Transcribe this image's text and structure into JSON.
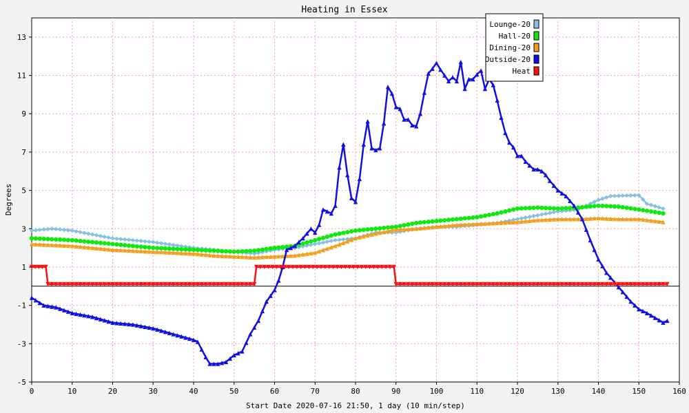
{
  "chart_data": {
    "type": "line",
    "title": "Heating in Essex",
    "xlabel": "Start Date 2020-07-16 21:50, 1 day (10 min/step)",
    "ylabel": "Degrees",
    "xlim": [
      0,
      160
    ],
    "ylim": [
      -5,
      14
    ],
    "x_ticks": [
      0,
      10,
      20,
      30,
      40,
      50,
      60,
      70,
      80,
      90,
      100,
      110,
      120,
      130,
      140,
      150,
      160
    ],
    "y_ticks": [
      -5,
      -3,
      -1,
      1,
      3,
      5,
      7,
      9,
      11,
      13
    ],
    "grid": true,
    "legend_position": "top-right",
    "series": [
      {
        "name": "Lounge-20",
        "color": "#87c0e0",
        "marker": "diamond",
        "points": [
          [
            0,
            2.9
          ],
          [
            5,
            3.0
          ],
          [
            10,
            2.9
          ],
          [
            15,
            2.7
          ],
          [
            20,
            2.5
          ],
          [
            30,
            2.3
          ],
          [
            40,
            2.0
          ],
          [
            45,
            1.9
          ],
          [
            50,
            1.8
          ],
          [
            55,
            1.7
          ],
          [
            60,
            1.9
          ],
          [
            65,
            2.0
          ],
          [
            70,
            2.2
          ],
          [
            75,
            2.4
          ],
          [
            80,
            2.5
          ],
          [
            85,
            2.8
          ],
          [
            90,
            2.8
          ],
          [
            95,
            3.0
          ],
          [
            100,
            3.1
          ],
          [
            105,
            3.1
          ],
          [
            110,
            3.2
          ],
          [
            115,
            3.3
          ],
          [
            120,
            3.5
          ],
          [
            125,
            3.7
          ],
          [
            130,
            3.9
          ],
          [
            135,
            4.0
          ],
          [
            140,
            4.5
          ],
          [
            143,
            4.7
          ],
          [
            150,
            4.75
          ],
          [
            152,
            4.3
          ],
          [
            156,
            4.05
          ]
        ]
      },
      {
        "name": "Hall-20",
        "color": "#10e810",
        "marker": "circle",
        "points": [
          [
            0,
            2.5
          ],
          [
            10,
            2.4
          ],
          [
            20,
            2.2
          ],
          [
            30,
            2.0
          ],
          [
            40,
            1.9
          ],
          [
            45,
            1.85
          ],
          [
            50,
            1.8
          ],
          [
            55,
            1.85
          ],
          [
            60,
            2.0
          ],
          [
            65,
            2.1
          ],
          [
            70,
            2.4
          ],
          [
            75,
            2.7
          ],
          [
            80,
            2.9
          ],
          [
            85,
            3.0
          ],
          [
            90,
            3.1
          ],
          [
            95,
            3.3
          ],
          [
            100,
            3.4
          ],
          [
            105,
            3.5
          ],
          [
            110,
            3.6
          ],
          [
            115,
            3.8
          ],
          [
            120,
            4.05
          ],
          [
            125,
            4.1
          ],
          [
            130,
            4.05
          ],
          [
            135,
            4.1
          ],
          [
            140,
            4.2
          ],
          [
            145,
            4.15
          ],
          [
            150,
            4.0
          ],
          [
            156,
            3.8
          ]
        ]
      },
      {
        "name": "Dining-20",
        "color": "#f0a020",
        "marker": "triangle",
        "points": [
          [
            0,
            2.2
          ],
          [
            10,
            2.1
          ],
          [
            20,
            1.9
          ],
          [
            30,
            1.8
          ],
          [
            40,
            1.7
          ],
          [
            45,
            1.6
          ],
          [
            50,
            1.55
          ],
          [
            55,
            1.5
          ],
          [
            60,
            1.55
          ],
          [
            65,
            1.6
          ],
          [
            70,
            1.75
          ],
          [
            75,
            2.1
          ],
          [
            80,
            2.5
          ],
          [
            85,
            2.75
          ],
          [
            90,
            2.95
          ],
          [
            95,
            3.0
          ],
          [
            100,
            3.1
          ],
          [
            105,
            3.2
          ],
          [
            110,
            3.25
          ],
          [
            115,
            3.3
          ],
          [
            120,
            3.35
          ],
          [
            125,
            3.45
          ],
          [
            130,
            3.5
          ],
          [
            135,
            3.5
          ],
          [
            140,
            3.55
          ],
          [
            145,
            3.5
          ],
          [
            150,
            3.5
          ],
          [
            156,
            3.35
          ]
        ]
      },
      {
        "name": "Outside-20",
        "color": "#1010e0",
        "marker": "triangle",
        "points": [
          [
            0,
            -0.6
          ],
          [
            3,
            -1.0
          ],
          [
            6,
            -1.1
          ],
          [
            10,
            -1.4
          ],
          [
            15,
            -1.6
          ],
          [
            20,
            -1.9
          ],
          [
            25,
            -2.0
          ],
          [
            30,
            -2.2
          ],
          [
            35,
            -2.5
          ],
          [
            40,
            -2.8
          ],
          [
            41,
            -2.9
          ],
          [
            43,
            -3.7
          ],
          [
            44,
            -4.05
          ],
          [
            46,
            -4.05
          ],
          [
            48,
            -3.95
          ],
          [
            50,
            -3.6
          ],
          [
            52,
            -3.4
          ],
          [
            54,
            -2.5
          ],
          [
            56,
            -1.8
          ],
          [
            58,
            -0.8
          ],
          [
            60,
            -0.2
          ],
          [
            61,
            0.3
          ],
          [
            62,
            1.0
          ],
          [
            63,
            1.9
          ],
          [
            65,
            2.1
          ],
          [
            67,
            2.5
          ],
          [
            69,
            3.0
          ],
          [
            70,
            2.8
          ],
          [
            71,
            3.2
          ],
          [
            72,
            4.0
          ],
          [
            74,
            3.8
          ],
          [
            75,
            4.2
          ],
          [
            76,
            6.2
          ],
          [
            77,
            7.4
          ],
          [
            78,
            5.8
          ],
          [
            79,
            4.6
          ],
          [
            80,
            4.4
          ],
          [
            81,
            5.6
          ],
          [
            82,
            7.4
          ],
          [
            83,
            8.6
          ],
          [
            84,
            7.2
          ],
          [
            85,
            7.1
          ],
          [
            86,
            7.2
          ],
          [
            87,
            8.5
          ],
          [
            88,
            10.4
          ],
          [
            89,
            10.05
          ],
          [
            90,
            9.35
          ],
          [
            91,
            9.25
          ],
          [
            92,
            8.7
          ],
          [
            93,
            8.7
          ],
          [
            94,
            8.4
          ],
          [
            95,
            8.35
          ],
          [
            96,
            9.0
          ],
          [
            97,
            10.1
          ],
          [
            98,
            11.1
          ],
          [
            99,
            11.35
          ],
          [
            100,
            11.65
          ],
          [
            101,
            11.3
          ],
          [
            102,
            11.0
          ],
          [
            103,
            10.7
          ],
          [
            104,
            10.9
          ],
          [
            105,
            10.7
          ],
          [
            106,
            11.7
          ],
          [
            107,
            10.3
          ],
          [
            108,
            10.8
          ],
          [
            109,
            10.8
          ],
          [
            110,
            11.05
          ],
          [
            111,
            11.25
          ],
          [
            112,
            10.3
          ],
          [
            113,
            10.8
          ],
          [
            114,
            10.5
          ],
          [
            115,
            9.7
          ],
          [
            116,
            8.8
          ],
          [
            117,
            8.0
          ],
          [
            118,
            7.5
          ],
          [
            119,
            7.25
          ],
          [
            120,
            6.8
          ],
          [
            121,
            6.8
          ],
          [
            122,
            6.5
          ],
          [
            123,
            6.3
          ],
          [
            124,
            6.1
          ],
          [
            125,
            6.1
          ],
          [
            126,
            6.0
          ],
          [
            127,
            5.8
          ],
          [
            128,
            5.5
          ],
          [
            130,
            5.0
          ],
          [
            132,
            4.7
          ],
          [
            134,
            4.2
          ],
          [
            136,
            3.5
          ],
          [
            138,
            2.4
          ],
          [
            140,
            1.4
          ],
          [
            142,
            0.7
          ],
          [
            144,
            0.2
          ],
          [
            146,
            -0.3
          ],
          [
            148,
            -0.8
          ],
          [
            150,
            -1.2
          ],
          [
            152,
            -1.4
          ],
          [
            154,
            -1.65
          ],
          [
            156,
            -1.9
          ],
          [
            157,
            -1.8
          ]
        ]
      },
      {
        "name": "Heat",
        "color": "#ff1010",
        "marker": "triangle-down",
        "points": [
          [
            0,
            1.0
          ],
          [
            3.5,
            1.0
          ],
          [
            4,
            0.1
          ],
          [
            55,
            0.1
          ],
          [
            55.5,
            1.0
          ],
          [
            89.5,
            1.0
          ],
          [
            90,
            0.1
          ],
          [
            157,
            0.1
          ]
        ]
      }
    ]
  }
}
